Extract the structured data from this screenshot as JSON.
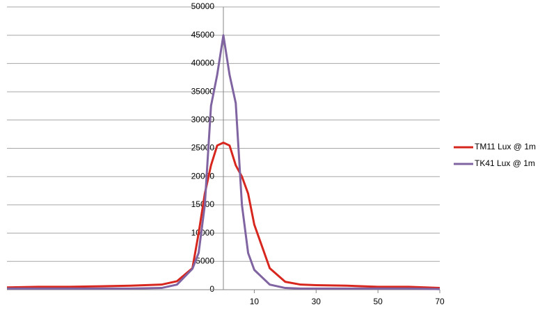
{
  "chart_data": {
    "type": "line",
    "x": [
      -70,
      -60,
      -50,
      -40,
      -30,
      -20,
      -15,
      -10,
      -8,
      -6,
      -4,
      -2,
      0,
      2,
      4,
      6,
      8,
      10,
      15,
      20,
      25,
      30,
      40,
      50,
      60,
      70
    ],
    "series": [
      {
        "name": "TM11 Lux @ 1m",
        "color": "#d7261e",
        "values": [
          400,
          500,
          500,
          600,
          700,
          900,
          1500,
          3800,
          10000,
          17000,
          22000,
          25500,
          26000,
          25500,
          22000,
          20000,
          17000,
          11500,
          3800,
          1400,
          900,
          800,
          700,
          500,
          500,
          300
        ]
      },
      {
        "name": "TK41 Lux @ 1m",
        "color": "#8064a2",
        "values": [
          200,
          200,
          200,
          200,
          200,
          300,
          900,
          3700,
          6500,
          15000,
          32500,
          38000,
          45000,
          38000,
          33000,
          15000,
          6500,
          3500,
          900,
          300,
          200,
          200,
          200,
          200,
          200,
          100
        ]
      }
    ],
    "xlim": [
      -70,
      70
    ],
    "xticks": [
      10,
      30,
      50,
      70
    ],
    "ylim": [
      0,
      50000
    ],
    "yticks": [
      0,
      5000,
      10000,
      15000,
      20000,
      25000,
      30000,
      35000,
      40000,
      45000,
      50000
    ],
    "grid": true,
    "legend": "right"
  }
}
